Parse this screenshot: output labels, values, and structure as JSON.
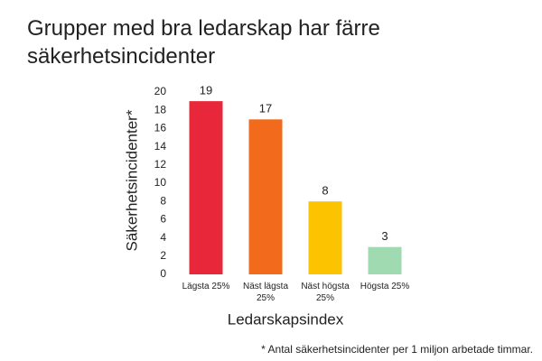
{
  "chart_data": {
    "type": "bar",
    "title": "Grupper med bra ledarskap har färre säkerhetsincidenter",
    "categories": [
      "Lägsta 25%",
      "Näst lägsta 25%",
      "Näst högsta 25%",
      "Högsta 25%"
    ],
    "values": [
      19,
      17,
      8,
      3
    ],
    "colors": [
      "#e8283a",
      "#f26a1b",
      "#fbc300",
      "#9fdab0"
    ],
    "ylim": [
      0,
      20
    ],
    "yticks": [
      0,
      2,
      4,
      6,
      8,
      10,
      12,
      14,
      16,
      18,
      20
    ],
    "y_label": "Säkerhetsincidenter*",
    "x_label": "Ledarskapsindex",
    "footnote": "* Antal säkerhetsincidenter per 1 miljon arbetade timmar.",
    "grid": false
  }
}
